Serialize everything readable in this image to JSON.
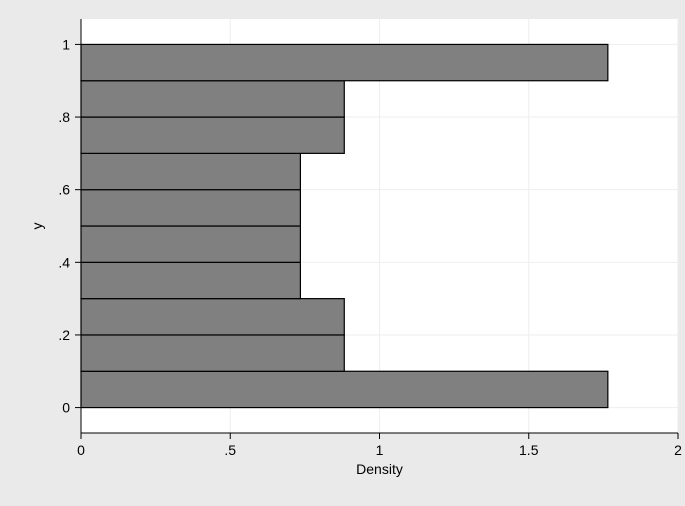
{
  "chart_data": {
    "type": "bar",
    "orientation": "horizontal",
    "xlabel": "Density",
    "ylabel": "y",
    "xlim": [
      0,
      2
    ],
    "ylim": [
      -0.07,
      1.07
    ],
    "grid": true,
    "colors": {
      "outer_background": "#eaeaea",
      "plot_background": "#ffffff",
      "bar_fill": "#808080",
      "bar_stroke": "#000000",
      "grid": "#eeeeee"
    },
    "x_ticks": [
      {
        "value": 0,
        "label": "0"
      },
      {
        "value": 0.5,
        "label": ".5"
      },
      {
        "value": 1,
        "label": "1"
      },
      {
        "value": 1.5,
        "label": "1.5"
      },
      {
        "value": 2,
        "label": "2"
      }
    ],
    "y_ticks": [
      {
        "value": 0,
        "label": "0"
      },
      {
        "value": 0.2,
        "label": ".2"
      },
      {
        "value": 0.4,
        "label": ".4"
      },
      {
        "value": 0.6,
        "label": ".6"
      },
      {
        "value": 0.8,
        "label": ".8"
      },
      {
        "value": 1,
        "label": "1"
      }
    ],
    "bins": [
      {
        "y_start": 0.0,
        "y_end": 0.1,
        "density": 1.765
      },
      {
        "y_start": 0.1,
        "y_end": 0.2,
        "density": 0.882
      },
      {
        "y_start": 0.2,
        "y_end": 0.3,
        "density": 0.882
      },
      {
        "y_start": 0.3,
        "y_end": 0.4,
        "density": 0.735
      },
      {
        "y_start": 0.4,
        "y_end": 0.5,
        "density": 0.735
      },
      {
        "y_start": 0.5,
        "y_end": 0.6,
        "density": 0.735
      },
      {
        "y_start": 0.6,
        "y_end": 0.7,
        "density": 0.735
      },
      {
        "y_start": 0.7,
        "y_end": 0.8,
        "density": 0.882
      },
      {
        "y_start": 0.8,
        "y_end": 0.9,
        "density": 0.882
      },
      {
        "y_start": 0.9,
        "y_end": 1.0,
        "density": 1.765
      }
    ]
  }
}
